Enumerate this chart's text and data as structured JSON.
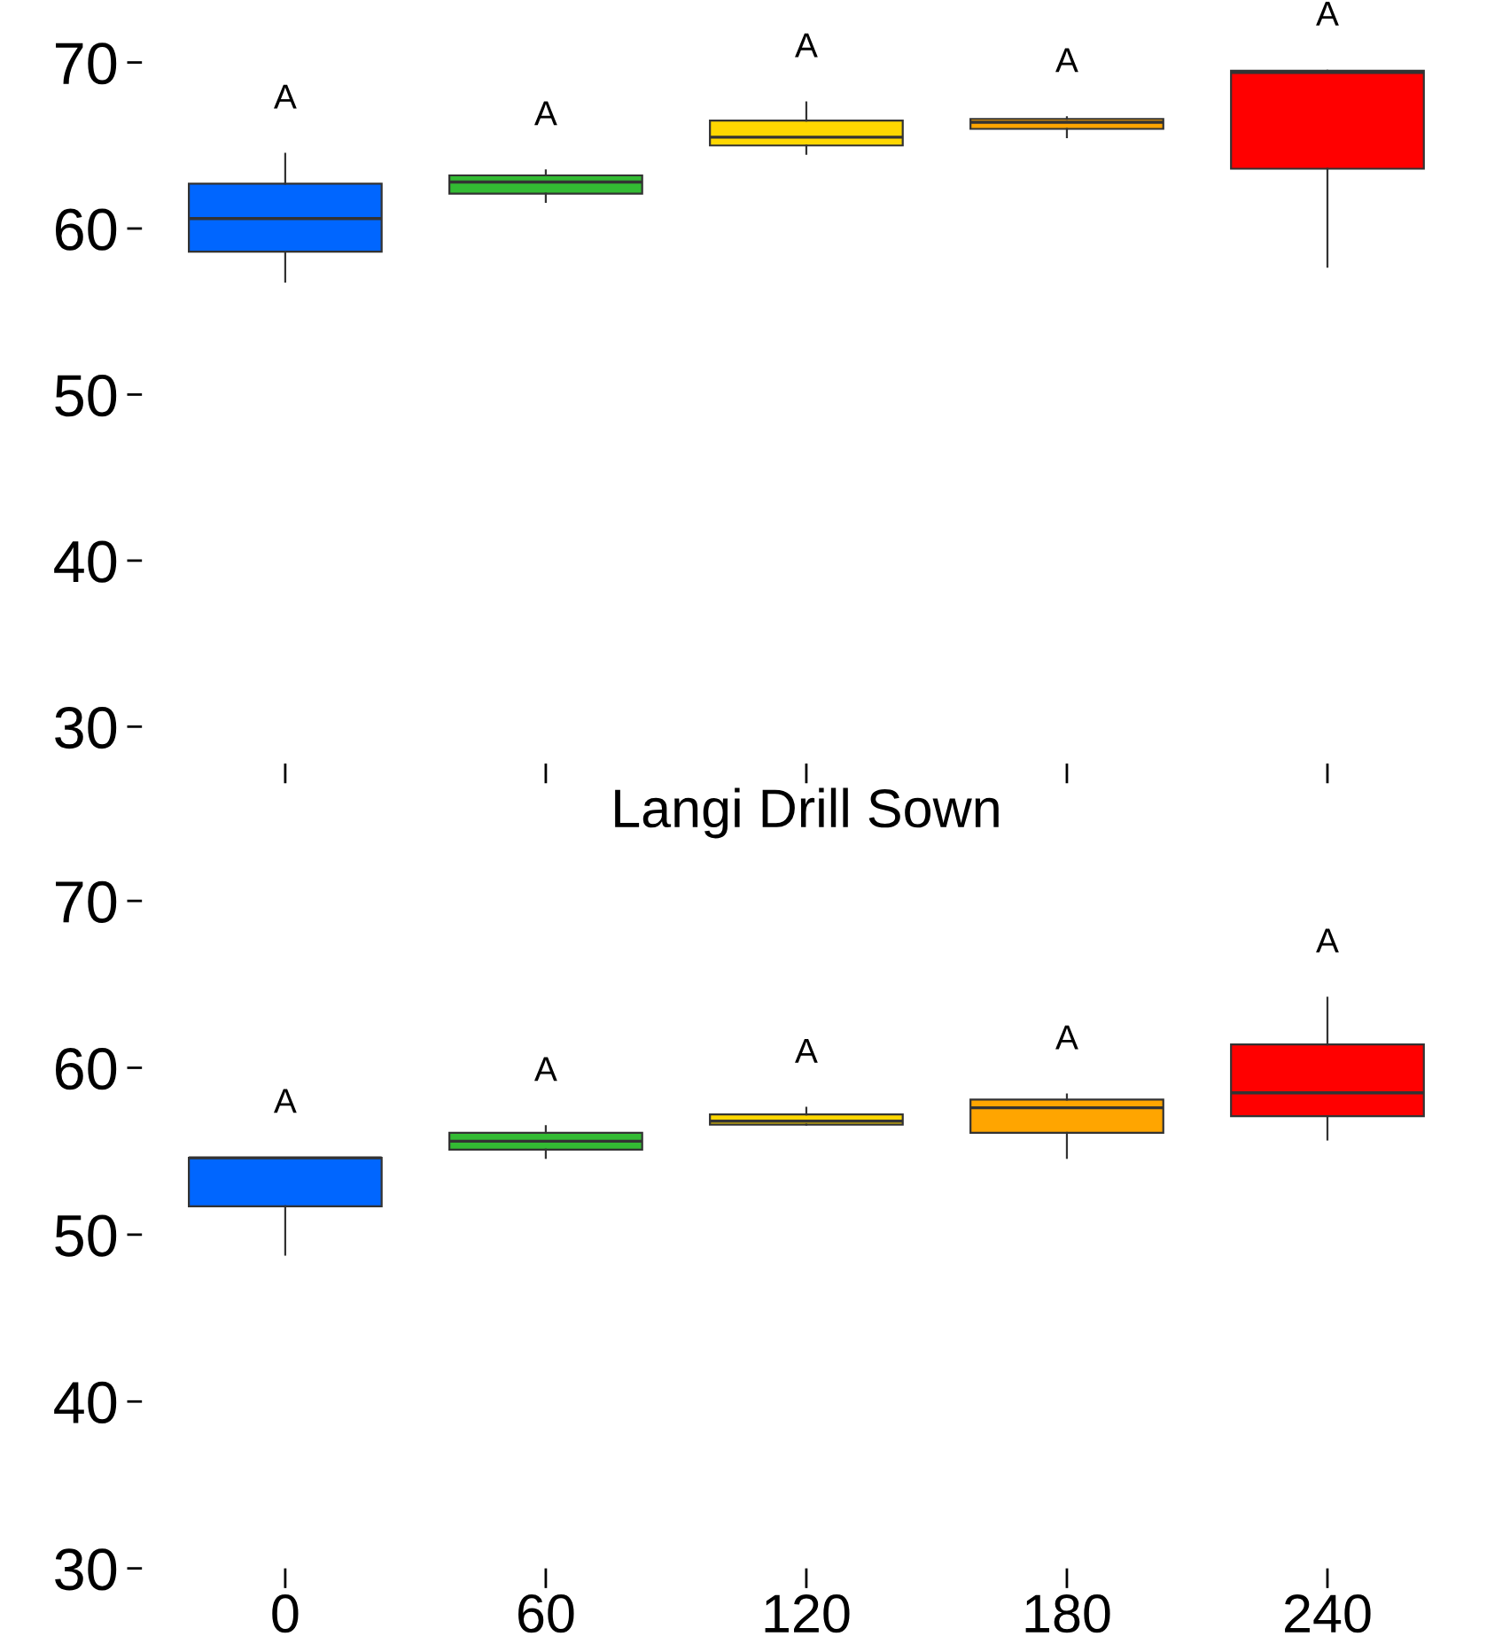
{
  "chart_data": [
    {
      "type": "box",
      "categories": [
        "0",
        "60",
        "120",
        "180",
        "240"
      ],
      "colors": [
        "#0066ff",
        "#33bb33",
        "#ffd700",
        "#ffa500",
        "#ff0000"
      ],
      "boxes": [
        {
          "low": 56.8,
          "q1": 58.6,
          "median": 60.6,
          "q3": 62.7,
          "high": 64.5
        },
        {
          "low": 61.6,
          "q1": 62.1,
          "median": 62.8,
          "q3": 63.2,
          "high": 63.5
        },
        {
          "low": 64.5,
          "q1": 65.0,
          "median": 65.5,
          "q3": 66.5,
          "high": 67.6
        },
        {
          "low": 65.5,
          "q1": 66.0,
          "median": 66.4,
          "q3": 66.6,
          "high": 66.7
        },
        {
          "low": 57.7,
          "q1": 63.6,
          "median": 69.4,
          "q3": 69.5,
          "high": 69.5
        }
      ],
      "ylim": [
        30,
        70
      ],
      "yticks": [
        30,
        40,
        50,
        60,
        70
      ],
      "tick_labels": "y",
      "grid": false,
      "legend": false,
      "annotations": [
        "A",
        "A",
        "A",
        "A",
        "A"
      ]
    },
    {
      "type": "box",
      "title": "Langi Drill Sown",
      "categories": [
        "0",
        "60",
        "120",
        "180",
        "240"
      ],
      "colors": [
        "#0066ff",
        "#33bb33",
        "#ffd700",
        "#ffa500",
        "#ff0000"
      ],
      "boxes": [
        {
          "low": 48.8,
          "q1": 51.7,
          "median": 54.6,
          "q3": 54.6,
          "high": 54.6
        },
        {
          "low": 54.6,
          "q1": 55.1,
          "median": 55.6,
          "q3": 56.1,
          "high": 56.5
        },
        {
          "low": 56.6,
          "q1": 56.6,
          "median": 56.8,
          "q3": 57.2,
          "high": 57.6
        },
        {
          "low": 54.6,
          "q1": 56.1,
          "median": 57.6,
          "q3": 58.1,
          "high": 58.4
        },
        {
          "low": 55.7,
          "q1": 57.1,
          "median": 58.5,
          "q3": 61.4,
          "high": 64.2
        }
      ],
      "ylim": [
        30,
        70
      ],
      "yticks": [
        30,
        40,
        50,
        60,
        70
      ],
      "grid": false,
      "legend": false,
      "annotations": [
        "A",
        "A",
        "A",
        "A",
        "A"
      ]
    }
  ]
}
